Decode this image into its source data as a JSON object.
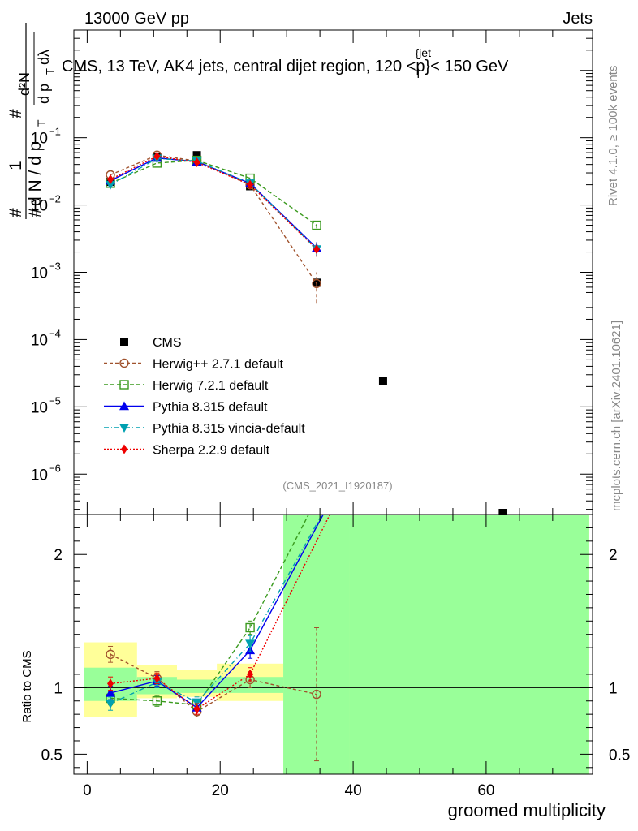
{
  "header": {
    "left": "13000 GeV pp",
    "right": "Jets"
  },
  "chart_data": {
    "type": "scatter",
    "title": "CMS, 13 TeV, AK4 jets, central dijet region, 120 <p",
    "title_sup": "{jet",
    "title_sub": "T",
    "title_tail": "}< 150 GeV",
    "analysis_id": "(CMS_2021_I1920187)",
    "side_top": "Rivet 4.1.0, ≥ 100k events",
    "side_bottom": "mcplots.cern.ch [arXiv:2401.10621]",
    "ylabel_main": {
      "num_hash": "#",
      "num_one": "1",
      "den_hash": "#",
      "den_dN": "d N / d p",
      "den_sub": "T",
      "frac_num": "d²N",
      "frac_den": "d p",
      "frac_den_sub": "T",
      "frac_den_tail": "dλ"
    },
    "ylabel_ratio": "Ratio to CMS",
    "xlabel": "groomed multiplicity",
    "xlim": [
      -2,
      76
    ],
    "ylim_main_log10": [
      -6.6,
      0.6
    ],
    "ylim_ratio": [
      0.35,
      2.3
    ],
    "x_ticks": [
      0,
      20,
      40,
      60
    ],
    "x_tick_labels": [
      "0",
      "20",
      "40",
      "60"
    ],
    "main_y_ticks": [
      {
        "v": -6,
        "base": "10",
        "exp": "−6"
      },
      {
        "v": -5,
        "base": "10",
        "exp": "−5"
      },
      {
        "v": -4,
        "base": "10",
        "exp": "−4"
      },
      {
        "v": -3,
        "base": "10",
        "exp": "−3"
      },
      {
        "v": -2,
        "base": "10",
        "exp": "−2"
      },
      {
        "v": -1,
        "base": "10",
        "exp": "−1"
      }
    ],
    "ratio_y_ticks": [
      0.5,
      1,
      2
    ],
    "ratio_y_tick_labels": [
      "0.5",
      "1",
      "2"
    ],
    "cms": {
      "name": "CMS",
      "x": [
        3.5,
        10.5,
        16.5,
        24.5,
        34.5,
        44.5,
        62.5
      ],
      "y": [
        0.022,
        0.051,
        0.055,
        0.019,
        0.0007,
        2.4e-05,
        2e-07
      ]
    },
    "bands": [
      {
        "x0": -0.5,
        "x1": 7.5,
        "stat": [
          0.9,
          1.15
        ],
        "total": [
          0.78,
          1.34
        ]
      },
      {
        "x0": 7.5,
        "x1": 13.5,
        "stat": [
          0.95,
          1.08
        ],
        "total": [
          0.92,
          1.17
        ]
      },
      {
        "x0": 13.5,
        "x1": 19.5,
        "stat": [
          0.96,
          1.06
        ],
        "total": [
          0.93,
          1.13
        ]
      },
      {
        "x0": 19.5,
        "x1": 29.5,
        "stat": [
          0.96,
          1.08
        ],
        "total": [
          0.9,
          1.18
        ]
      },
      {
        "x0": 29.5,
        "x1": 39.5,
        "stat": [
          0.35,
          2.3
        ],
        "total": [
          0.35,
          2.1
        ]
      },
      {
        "x0": 39.5,
        "x1": 49.5,
        "stat": [
          0.35,
          2.3
        ],
        "total": [
          0.35,
          1.95
        ]
      },
      {
        "x0": 49.5,
        "x1": 75.5,
        "stat": [
          0.35,
          2.3
        ],
        "total": [
          0.35,
          2.3
        ]
      }
    ],
    "series": [
      {
        "name": "Herwig++ 2.7.1 default",
        "color": "#a0522d",
        "dash": "4,3",
        "marker": "circle-open",
        "x": [
          3.5,
          10.5,
          16.5,
          24.5,
          34.5
        ],
        "y": [
          0.028,
          0.055,
          0.045,
          0.02,
          0.00068
        ],
        "ratio_x": [
          3.5,
          10.5,
          16.5,
          24.5,
          34.5
        ],
        "ratio": [
          1.25,
          1.07,
          0.82,
          1.06,
          0.95
        ],
        "ratio_err": [
          0.06,
          0.05,
          0.04,
          0.06,
          0.5
        ],
        "main_err_last": [
          0.00035,
          0.001
        ]
      },
      {
        "name": "Herwig 7.2.1 default",
        "color": "#3a9a1e",
        "dash": "5,3",
        "marker": "square-open",
        "x": [
          3.5,
          10.5,
          16.5,
          24.5,
          34.5
        ],
        "y": [
          0.021,
          0.042,
          0.046,
          0.025,
          0.005
        ],
        "ratio_x": [
          3.5,
          10.5,
          16.5,
          24.5,
          33.3
        ],
        "ratio": [
          0.92,
          0.9,
          0.87,
          1.45,
          2.3
        ],
        "ratio_err": [
          0.05,
          0.04,
          0.04,
          0.05,
          0
        ],
        "main_err_last": [
          0.0045,
          0.0056
        ]
      },
      {
        "name": "Pythia 8.315 default",
        "color": "#0000ee",
        "dash": "",
        "marker": "triangle-up",
        "x": [
          3.5,
          10.5,
          16.5,
          24.5,
          34.5
        ],
        "y": [
          0.023,
          0.05,
          0.044,
          0.021,
          0.0023
        ],
        "ratio_x": [
          3.5,
          10.5,
          16.5,
          24.5,
          35.5
        ],
        "ratio": [
          0.96,
          1.05,
          0.85,
          1.28,
          2.3
        ],
        "ratio_err": [
          0.05,
          0.04,
          0.04,
          0.06,
          0
        ],
        "main_err_last": [
          0.0018,
          0.0028
        ]
      },
      {
        "name": "Pythia 8.315 vincia-default",
        "color": "#00a0b0",
        "dash": "6,3,1,3",
        "marker": "triangle-down",
        "x": [
          3.5,
          10.5,
          16.5,
          24.5,
          34.5
        ],
        "y": [
          0.02,
          0.049,
          0.045,
          0.021,
          0.0022
        ],
        "ratio_x": [
          3.5,
          10.5,
          16.5,
          24.5,
          35.3
        ],
        "ratio": [
          0.88,
          1.04,
          0.89,
          1.33,
          2.3
        ],
        "ratio_err": [
          0.05,
          0.04,
          0.04,
          0.06,
          0
        ],
        "main_err_last": [
          0.0017,
          0.0027
        ]
      },
      {
        "name": "Sherpa 2.2.9 default",
        "color": "#ee0000",
        "dash": "2,2",
        "marker": "diamond",
        "x": [
          3.5,
          10.5,
          16.5,
          24.5,
          34.5
        ],
        "y": [
          0.024,
          0.053,
          0.043,
          0.02,
          0.0022
        ],
        "ratio_x": [
          3.5,
          10.5,
          16.5,
          24.5,
          36.5
        ],
        "ratio": [
          1.03,
          1.07,
          0.84,
          1.1,
          2.3
        ],
        "ratio_err": [
          0.05,
          0.04,
          0.04,
          0.05,
          0
        ],
        "main_err_last": [
          0.0017,
          0.0027
        ]
      }
    ]
  }
}
